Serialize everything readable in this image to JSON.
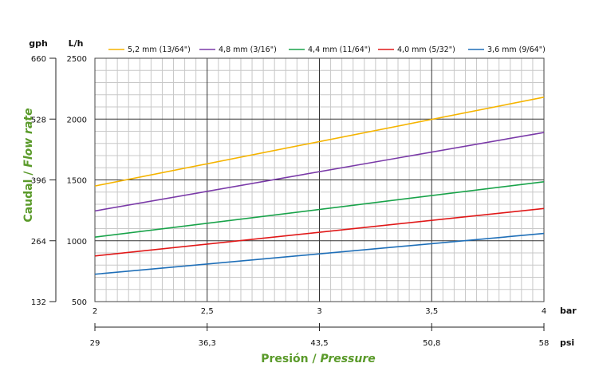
{
  "chart_data": {
    "type": "line",
    "x_bar": [
      2,
      2.5,
      3,
      3.5,
      4
    ],
    "x_bar_unit": "bar",
    "x_psi": [
      "29",
      "36,3",
      "43,5",
      "50,8",
      "58"
    ],
    "x_psi_unit": "psi",
    "xlim": [
      2,
      4
    ],
    "ylim_lh": [
      500,
      2500
    ],
    "y_lh_ticks": [
      "500",
      "1000",
      "1500",
      "2000",
      "2500"
    ],
    "y_lh_unit": "L/h",
    "y_gph_ticks": [
      "132",
      "264",
      "396",
      "528",
      "660"
    ],
    "y_gph_unit": "gph",
    "ylabel": {
      "main": "Caudal / ",
      "italic": "Flow rate"
    },
    "xlabel": {
      "main": "Presión / ",
      "italic": "Pressure"
    },
    "legend_placement": "top",
    "grid": true,
    "series": [
      {
        "name": "5,2 mm (13/64\")",
        "color": "#f5b400",
        "x": [
          2,
          4
        ],
        "y": [
          1450,
          2180
        ]
      },
      {
        "name": "4,8 mm (3/16\")",
        "color": "#7a3aa8",
        "x": [
          2,
          4
        ],
        "y": [
          1245,
          1890
        ]
      },
      {
        "name": "4,4 mm (11/64\")",
        "color": "#19a34a",
        "x": [
          2,
          4
        ],
        "y": [
          1030,
          1485
        ]
      },
      {
        "name": "4,0 mm (5/32\")",
        "color": "#e01818",
        "x": [
          2,
          4
        ],
        "y": [
          875,
          1265
        ]
      },
      {
        "name": "3,6 mm (9/64\")",
        "color": "#1f6fb8",
        "x": [
          2,
          4
        ],
        "y": [
          725,
          1060
        ]
      }
    ]
  }
}
